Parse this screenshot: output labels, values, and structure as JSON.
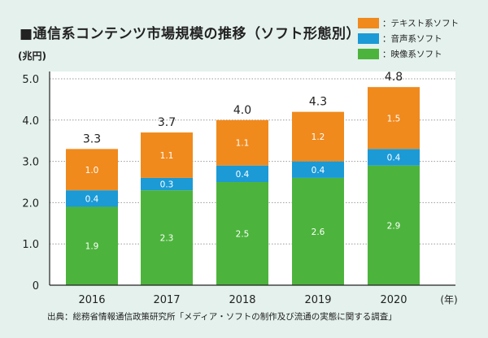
{
  "chart_data": {
    "type": "bar",
    "stacked": true,
    "title": "■通信系コンテンツ市場規模の推移（ソフト形態別）",
    "ylabel": "(兆円)",
    "xlabel": "(年)",
    "categories": [
      "2016",
      "2017",
      "2018",
      "2019",
      "2020"
    ],
    "totals": [
      "3.3",
      "3.7",
      "4.0",
      "4.3",
      "4.8"
    ],
    "series": [
      {
        "name": "：映像系ソフト",
        "color": "#4cb43c",
        "values": [
          1.9,
          2.3,
          2.5,
          2.6,
          2.9
        ]
      },
      {
        "name": "：音声系ソフト",
        "color": "#1b9ad6",
        "values": [
          0.4,
          0.3,
          0.4,
          0.4,
          0.4
        ]
      },
      {
        "name": "：テキスト系ソフト",
        "color": "#f08a1d",
        "values": [
          1.0,
          1.1,
          1.1,
          1.2,
          1.5
        ]
      }
    ],
    "legend_order": [
      2,
      1,
      0
    ],
    "legend_placement": "top-right",
    "yticks": [
      "0",
      "1.0",
      "2.0",
      "3.0",
      "4.0",
      "5.0"
    ],
    "ylim": [
      0,
      5.0
    ],
    "grid": "dotted horizontal"
  },
  "source": "出典：総務省情報通信政策研究所「メディア・ソフトの制作及び流通の実態に関する調査」"
}
